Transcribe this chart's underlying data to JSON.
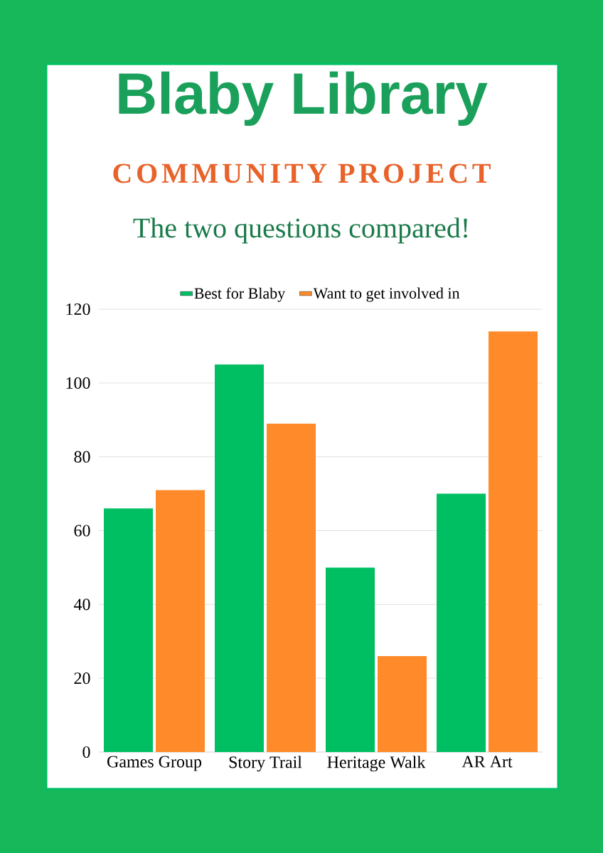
{
  "chart_data": {
    "type": "bar",
    "title": "Blaby Library",
    "subtitle": "COMMUNITY PROJECT",
    "annotations": [
      "The two questions compared!"
    ],
    "categories": [
      "Games Group",
      "Story Trail",
      "Heritage Walk",
      "AR Art"
    ],
    "series": [
      {
        "name": "Best for Blaby",
        "color": "#00bf63",
        "values": [
          66,
          105,
          50,
          70
        ]
      },
      {
        "name": "Want to get involved in",
        "color": "#ff8a2a",
        "values": [
          71,
          89,
          26,
          114
        ]
      }
    ],
    "ylim": [
      0,
      120
    ],
    "yticks": [
      0,
      20,
      40,
      60,
      80,
      100,
      120
    ],
    "grid": "y",
    "legend": "top"
  }
}
